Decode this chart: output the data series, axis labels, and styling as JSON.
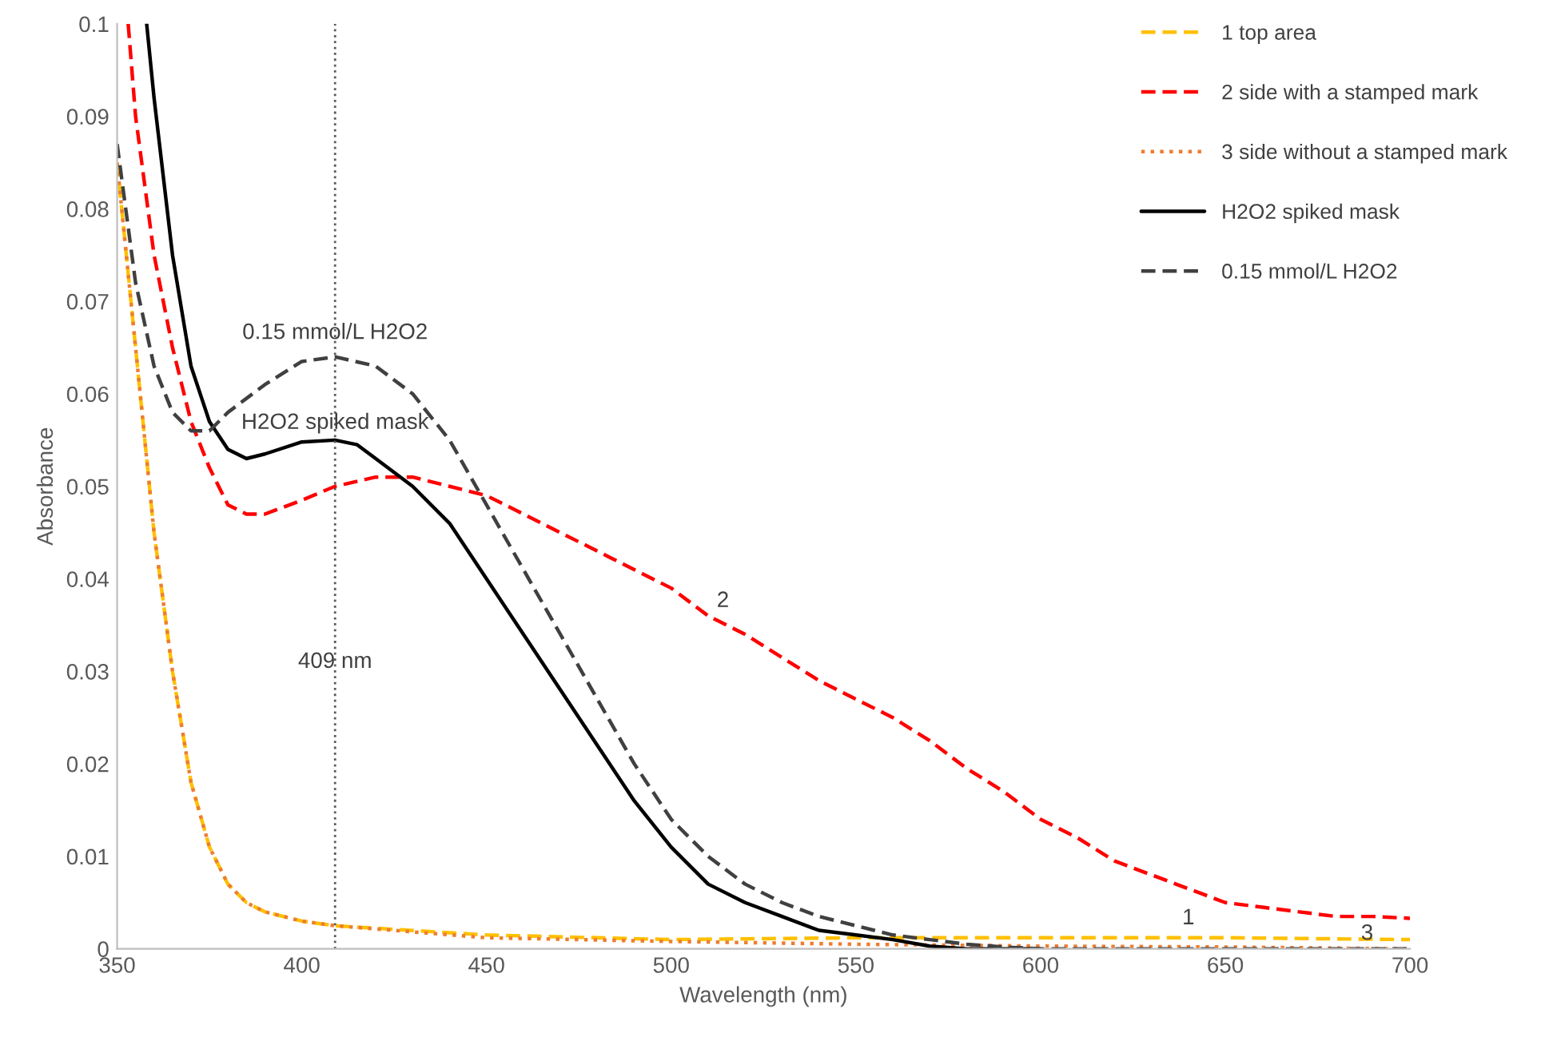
{
  "chart_data": {
    "type": "line",
    "xlabel": "Wavelength (nm)",
    "ylabel": "Absorbance",
    "xlim": [
      350,
      700
    ],
    "ylim": [
      0,
      0.1
    ],
    "xticks": [
      350,
      400,
      450,
      500,
      550,
      600,
      650,
      700
    ],
    "yticks": [
      0,
      0.01,
      0.02,
      0.03,
      0.04,
      0.05,
      0.06,
      0.07,
      0.08,
      0.09,
      0.1
    ],
    "legend": "top right",
    "series": [
      {
        "name": "1 top area",
        "color": "#ffc000",
        "line_style": "dashed",
        "x": [
          350,
          355,
          360,
          365,
          370,
          375,
          380,
          385,
          390,
          400,
          409,
          450,
          500,
          550,
          600,
          650,
          700
        ],
        "values": [
          0.085,
          0.065,
          0.045,
          0.03,
          0.018,
          0.011,
          0.007,
          0.005,
          0.004,
          0.003,
          0.0025,
          0.0015,
          0.001,
          0.0012,
          0.0012,
          0.0012,
          0.001
        ]
      },
      {
        "name": "2 side with a stamped mark",
        "color": "#ff0000",
        "line_style": "dashed",
        "x": [
          353,
          355,
          360,
          365,
          370,
          375,
          380,
          385,
          390,
          400,
          409,
          420,
          430,
          440,
          450,
          460,
          470,
          480,
          490,
          500,
          510,
          520,
          530,
          540,
          550,
          560,
          570,
          580,
          590,
          600,
          610,
          620,
          630,
          640,
          650,
          660,
          670,
          680,
          690,
          700
        ],
        "values": [
          0.1,
          0.09,
          0.075,
          0.065,
          0.057,
          0.052,
          0.048,
          0.047,
          0.047,
          0.0485,
          0.05,
          0.051,
          0.051,
          0.05,
          0.049,
          0.047,
          0.045,
          0.043,
          0.041,
          0.039,
          0.036,
          0.034,
          0.0315,
          0.029,
          0.027,
          0.025,
          0.0225,
          0.0195,
          0.017,
          0.014,
          0.012,
          0.0095,
          0.008,
          0.0065,
          0.005,
          0.0045,
          0.004,
          0.0035,
          0.0035,
          0.0033
        ]
      },
      {
        "name": "3 side without a stamped mark",
        "color": "#ed7d31",
        "line_style": "dotted",
        "x": [
          350,
          355,
          360,
          365,
          370,
          375,
          380,
          385,
          390,
          400,
          409,
          450,
          500,
          550,
          600,
          650,
          700
        ],
        "values": [
          0.085,
          0.065,
          0.045,
          0.03,
          0.018,
          0.011,
          0.007,
          0.005,
          0.004,
          0.003,
          0.0025,
          0.0012,
          0.0008,
          0.0005,
          0.0003,
          0.0002,
          0
        ]
      },
      {
        "name": "H2O2 spiked mask",
        "color": "#000000",
        "line_style": "solid",
        "x": [
          358,
          360,
          365,
          370,
          375,
          380,
          385,
          390,
          400,
          409,
          415,
          420,
          430,
          440,
          450,
          460,
          470,
          480,
          490,
          500,
          510,
          520,
          530,
          540,
          550,
          560,
          570,
          580,
          600
        ],
        "values": [
          0.1,
          0.092,
          0.075,
          0.063,
          0.057,
          0.054,
          0.053,
          0.0535,
          0.0548,
          0.055,
          0.0545,
          0.053,
          0.05,
          0.046,
          0.04,
          0.034,
          0.028,
          0.022,
          0.016,
          0.011,
          0.007,
          0.005,
          0.0035,
          0.002,
          0.0015,
          0.001,
          0.0003,
          0,
          0
        ]
      },
      {
        "name": "0.15 mmol/L H2O2",
        "color": "#404040",
        "line_style": "dashed",
        "x": [
          350,
          355,
          360,
          365,
          370,
          375,
          380,
          390,
          400,
          409,
          420,
          430,
          440,
          450,
          460,
          470,
          480,
          490,
          500,
          510,
          520,
          530,
          540,
          550,
          560,
          570,
          580,
          590,
          600,
          650,
          700
        ],
        "values": [
          0.087,
          0.072,
          0.063,
          0.058,
          0.056,
          0.056,
          0.058,
          0.061,
          0.0635,
          0.064,
          0.063,
          0.06,
          0.055,
          0.048,
          0.041,
          0.034,
          0.027,
          0.02,
          0.014,
          0.01,
          0.007,
          0.005,
          0.0035,
          0.0025,
          0.0015,
          0.001,
          0.0005,
          0.0002,
          0,
          0,
          0
        ]
      }
    ],
    "ref_lines": [
      {
        "axis": "x",
        "value": 409,
        "label": "409 nm",
        "color": "#595959",
        "line_style": "dotted"
      }
    ],
    "annotations": [
      {
        "text": "0.15 mmol/L H2O2",
        "x": 409,
        "y": 0.064
      },
      {
        "text": "H2O2 spiked mask",
        "x": 409,
        "y": 0.055
      },
      {
        "text": "2",
        "x": 514,
        "y": 0.0355
      },
      {
        "text": "1",
        "x": 640,
        "y": 0.0012
      },
      {
        "text": "3",
        "x": 692,
        "y": 0
      }
    ]
  }
}
